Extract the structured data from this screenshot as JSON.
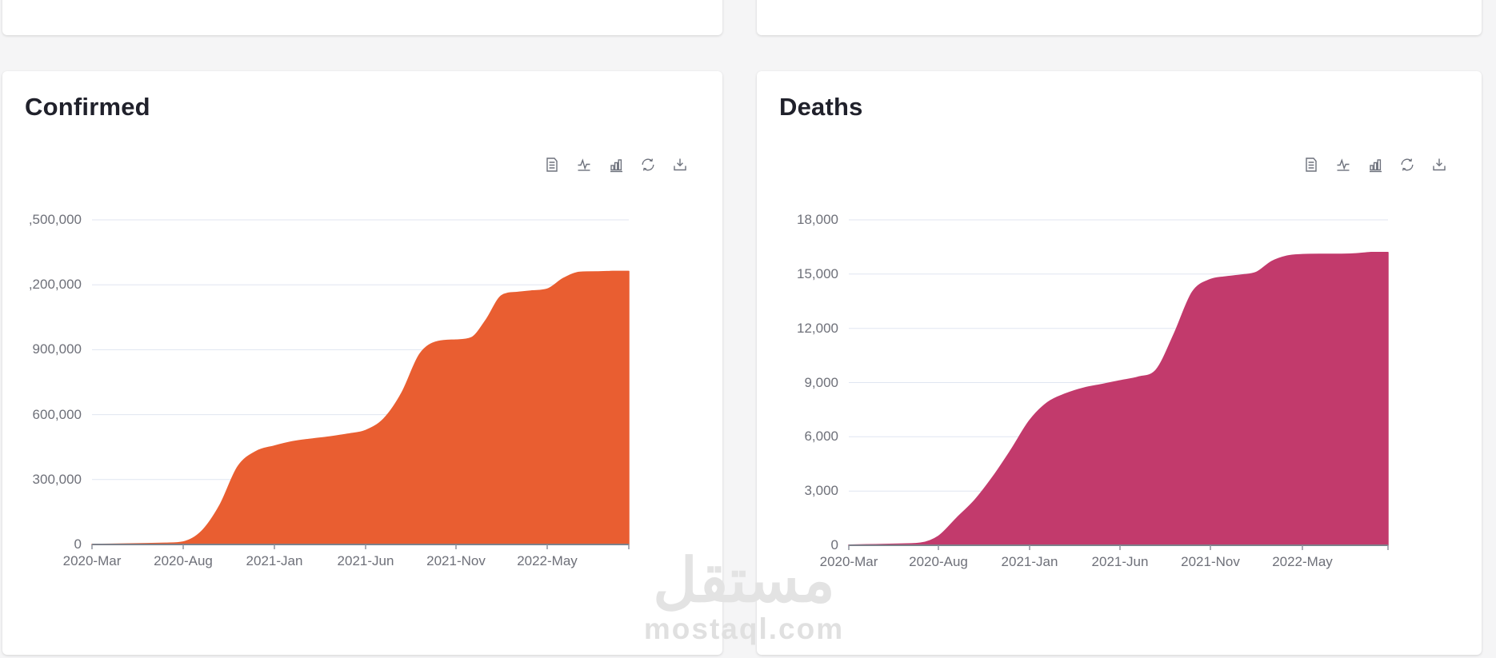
{
  "page": {
    "background_color": "#f5f5f6",
    "watermark": {
      "arabic_text": "مستقل",
      "latin_text": "mostaql.com"
    }
  },
  "toolbar": {
    "icons": [
      "data-view-icon",
      "line-chart-toggle-icon",
      "bar-chart-toggle-icon",
      "restore-icon",
      "save-as-image-icon"
    ]
  },
  "chart_data": [
    {
      "type": "area",
      "title": "Confirmed",
      "series_name": "Confirmed",
      "area_color": "#e95e31",
      "axis_label_color": "#6e7079",
      "gridline_color": "#e0e6f1",
      "grid": true,
      "ylim": [
        0,
        1500000
      ],
      "y_step": 300000,
      "y_tick_labels": [
        ",500,000",
        ",200,000",
        "900,000",
        "600,000",
        "300,000",
        "0"
      ],
      "x_tick_labels": [
        "2020-Mar",
        "2020-Aug",
        "2021-Jan",
        "2021-Jun",
        "2021-Nov",
        "2022-May"
      ],
      "points": [
        [
          "2020-03",
          500
        ],
        [
          "2020-04",
          1500
        ],
        [
          "2020-05",
          2500
        ],
        [
          "2020-06",
          4000
        ],
        [
          "2020-07",
          6000
        ],
        [
          "2020-08",
          12000
        ],
        [
          "2020-09",
          60000
        ],
        [
          "2020-10",
          180000
        ],
        [
          "2020-11",
          360000
        ],
        [
          "2020-12",
          430000
        ],
        [
          "2021-01",
          455000
        ],
        [
          "2021-02",
          475000
        ],
        [
          "2021-03",
          487000
        ],
        [
          "2021-04",
          497000
        ],
        [
          "2021-05",
          510000
        ],
        [
          "2021-06",
          527000
        ],
        [
          "2021-07",
          580000
        ],
        [
          "2021-08",
          700000
        ],
        [
          "2021-09",
          880000
        ],
        [
          "2021-10",
          938000
        ],
        [
          "2021-11",
          945000
        ],
        [
          "2021-12",
          955000
        ],
        [
          "2022-01",
          1040000
        ],
        [
          "2022-02",
          1150000
        ],
        [
          "2022-03",
          1165000
        ],
        [
          "2022-04",
          1172000
        ],
        [
          "2022-05",
          1180000
        ],
        [
          "2022-06",
          1230000
        ],
        [
          "2022-07",
          1258000
        ],
        [
          "2022-08",
          1260000
        ],
        [
          "2022-09",
          1262000
        ]
      ]
    },
    {
      "type": "area",
      "title": "Deaths",
      "series_name": "Deaths",
      "area_color": "#c23a6c",
      "axis_label_color": "#6e7079",
      "gridline_color": "#e0e6f1",
      "grid": true,
      "ylim": [
        0,
        18000
      ],
      "y_step": 3000,
      "y_tick_labels": [
        "18,000",
        "15,000",
        "12,000",
        "9,000",
        "6,000",
        "3,000",
        "0"
      ],
      "x_tick_labels": [
        "2020-Mar",
        "2020-Aug",
        "2021-Jan",
        "2021-Jun",
        "2021-Nov",
        "2022-May"
      ],
      "points": [
        [
          "2020-03",
          10
        ],
        [
          "2020-04",
          30
        ],
        [
          "2020-05",
          50
        ],
        [
          "2020-06",
          70
        ],
        [
          "2020-07",
          120
        ],
        [
          "2020-08",
          500
        ],
        [
          "2020-09",
          1500
        ],
        [
          "2020-10",
          2500
        ],
        [
          "2020-11",
          3800
        ],
        [
          "2020-12",
          5300
        ],
        [
          "2021-01",
          6900
        ],
        [
          "2021-02",
          7900
        ],
        [
          "2021-03",
          8380
        ],
        [
          "2021-04",
          8700
        ],
        [
          "2021-05",
          8900
        ],
        [
          "2021-06",
          9100
        ],
        [
          "2021-07",
          9300
        ],
        [
          "2021-08",
          9700
        ],
        [
          "2021-09",
          11700
        ],
        [
          "2021-10",
          14000
        ],
        [
          "2021-11",
          14700
        ],
        [
          "2021-12",
          14850
        ],
        [
          "2022-01",
          14950
        ],
        [
          "2022-02",
          15100
        ],
        [
          "2022-03",
          15700
        ],
        [
          "2022-04",
          16000
        ],
        [
          "2022-05",
          16080
        ],
        [
          "2022-06",
          16100
        ],
        [
          "2022-07",
          16100
        ],
        [
          "2022-08",
          16120
        ],
        [
          "2022-09",
          16200
        ]
      ]
    }
  ]
}
